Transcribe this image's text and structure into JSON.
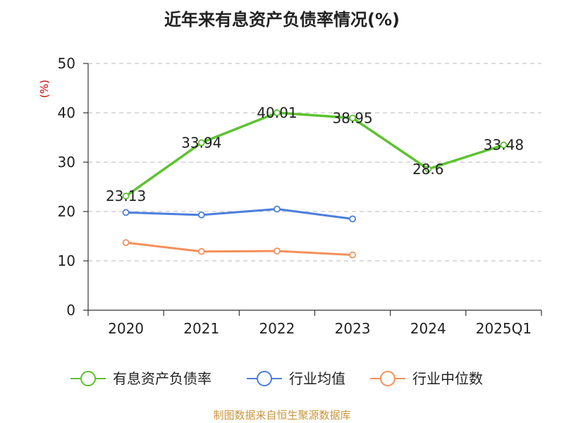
{
  "title": "近年来有息资产负债率情况(%)",
  "source": "制图数据来自恒生聚源数据库",
  "colors": {
    "main": "#5cc330",
    "avg": "#4a7fdc",
    "median": "#f4905a",
    "unit": "#cc0000"
  },
  "chart_data": {
    "type": "line",
    "title": "近年来有息资产负债率情况(%)",
    "ylabel": "(%)",
    "ylim": [
      0,
      50
    ],
    "yticks": [
      0,
      10,
      20,
      30,
      40,
      50
    ],
    "categories": [
      "2020",
      "2021",
      "2022",
      "2023",
      "2024",
      "2025Q1"
    ],
    "grid": true,
    "legend_position": "bottom",
    "series": [
      {
        "name": "有息资产负债率",
        "color": "#5cc330",
        "values": [
          23.13,
          33.94,
          40.01,
          38.95,
          28.6,
          33.48
        ],
        "labels": [
          "23.13",
          "33.94",
          "40.01",
          "38.95",
          "28.6",
          "33.48"
        ]
      },
      {
        "name": "行业均值",
        "color": "#4a7fdc",
        "values": [
          19.8,
          19.3,
          20.5,
          18.5,
          null,
          null
        ]
      },
      {
        "name": "行业中位数",
        "color": "#f4905a",
        "values": [
          13.7,
          11.9,
          12.0,
          11.2,
          null,
          null
        ]
      }
    ]
  }
}
